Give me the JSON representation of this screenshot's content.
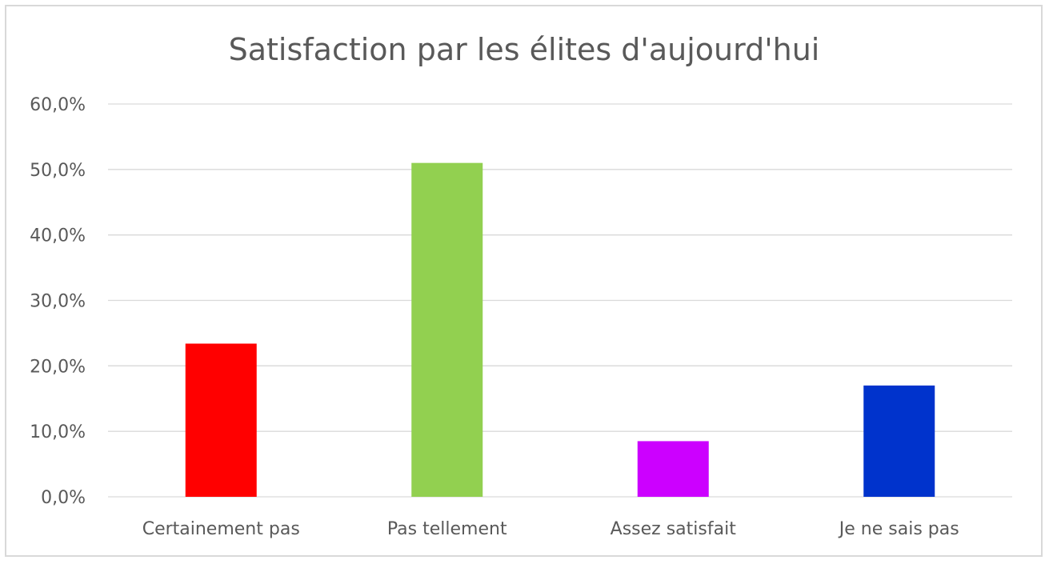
{
  "chart_data": {
    "type": "bar",
    "title": "Satisfaction par les élites d'aujourd'hui",
    "xlabel": "",
    "ylabel": "",
    "categories": [
      "Certainement pas",
      "Pas tellement",
      "Assez satisfait",
      "Je ne sais pas"
    ],
    "values": [
      0.234,
      0.51,
      0.085,
      0.17
    ],
    "colors": [
      "#ff0000",
      "#92d050",
      "#cc00ff",
      "#0033cc"
    ],
    "ylim": [
      0,
      0.6
    ],
    "yticks": [
      0,
      0.1,
      0.2,
      0.3,
      0.4,
      0.5,
      0.6
    ],
    "ytick_labels": [
      "0,0%",
      "10,0%",
      "20,0%",
      "30,0%",
      "40,0%",
      "50,0%",
      "60,0%"
    ],
    "grid": true,
    "legend": "none"
  }
}
